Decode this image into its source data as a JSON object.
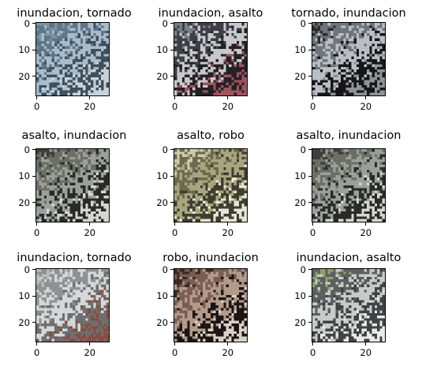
{
  "chart_data": {
    "type": "image-grid",
    "panels": [
      {
        "title": "inundacion, tornado",
        "palette": [
          "#7e93a5",
          "#5f7689",
          "#a9bccb",
          "#3f4f5c",
          "#c7d3dc"
        ]
      },
      {
        "title": "inundacion, asalto",
        "palette": [
          "#7a7f87",
          "#3d3f46",
          "#c8c8cc",
          "#222226",
          "#a0525e"
        ]
      },
      {
        "title": "tornado, inundacion",
        "palette": [
          "#2b2b2d",
          "#6f7478",
          "#b9bfc4",
          "#161618",
          "#8d9297"
        ]
      },
      {
        "title": "asalto, inundacion",
        "palette": [
          "#3c3f3a",
          "#6c6f66",
          "#9aa09a",
          "#2a2b28",
          "#d4d6d2"
        ]
      },
      {
        "title": "asalto, robo",
        "palette": [
          "#cfcbb0",
          "#6a6b4f",
          "#a9a67e",
          "#3e3d30",
          "#e6e4d4"
        ]
      },
      {
        "title": "asalto, inundacion",
        "palette": [
          "#3c3f3a",
          "#6c6f66",
          "#9aa09a",
          "#2a2b28",
          "#d4d6d2"
        ]
      },
      {
        "title": "inundacion, tornado",
        "palette": [
          "#b8bcbd",
          "#8e9293",
          "#d5d8d8",
          "#6d6f70",
          "#8a4b40"
        ]
      },
      {
        "title": "robo, inundacion",
        "palette": [
          "#3a2a27",
          "#7b5e53",
          "#b39a8a",
          "#1c1514",
          "#d9d0c8"
        ]
      },
      {
        "title": "inundacion, asalto",
        "palette": [
          "#8ea06a",
          "#5c5f62",
          "#c7ccc8",
          "#3f4347",
          "#e8ece6"
        ]
      }
    ],
    "yticks": [
      "0",
      "10",
      "20"
    ],
    "xticks": [
      "0",
      "20"
    ],
    "pixel_size": 28
  }
}
